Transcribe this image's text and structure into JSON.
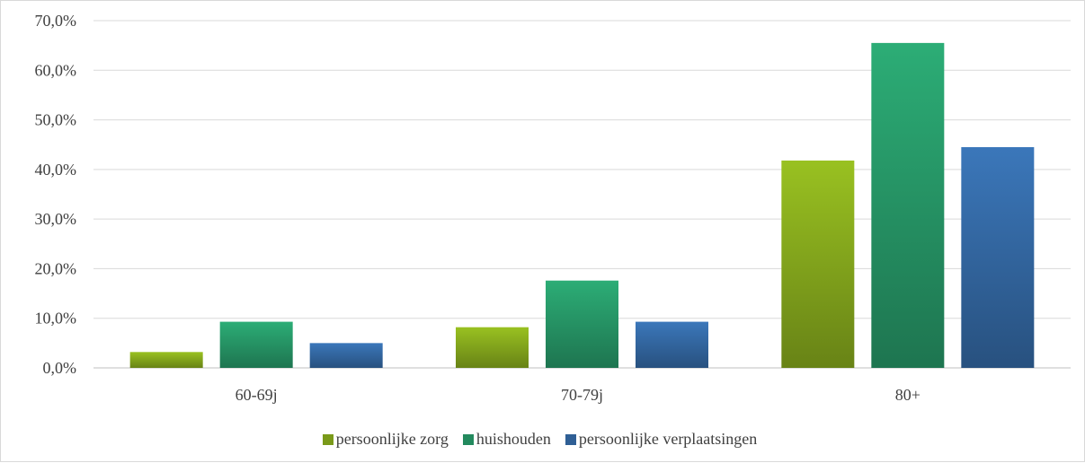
{
  "chart_data": {
    "type": "bar",
    "categories": [
      "60-69j",
      "70-79j",
      "80+"
    ],
    "series": [
      {
        "name": "persoonlijke zorg",
        "values": [
          3.2,
          8.2,
          41.8
        ],
        "color": "#7a9a1a"
      },
      {
        "name": "huishouden",
        "values": [
          9.3,
          17.6,
          65.5
        ],
        "color": "#238a5e"
      },
      {
        "name": "persoonlijke verplaatsingen",
        "values": [
          5.0,
          9.3,
          44.5
        ],
        "color": "#2f5f95"
      }
    ],
    "title": "",
    "xlabel": "",
    "ylabel": "",
    "ylim": [
      0,
      70
    ],
    "yticks": [
      0,
      10,
      20,
      30,
      40,
      50,
      60,
      70
    ],
    "ytick_labels": [
      "0,0%",
      "10,0%",
      "20,0%",
      "30,0%",
      "40,0%",
      "50,0%",
      "60,0%",
      "70,0%"
    ],
    "grid": true,
    "legend_position": "bottom"
  }
}
